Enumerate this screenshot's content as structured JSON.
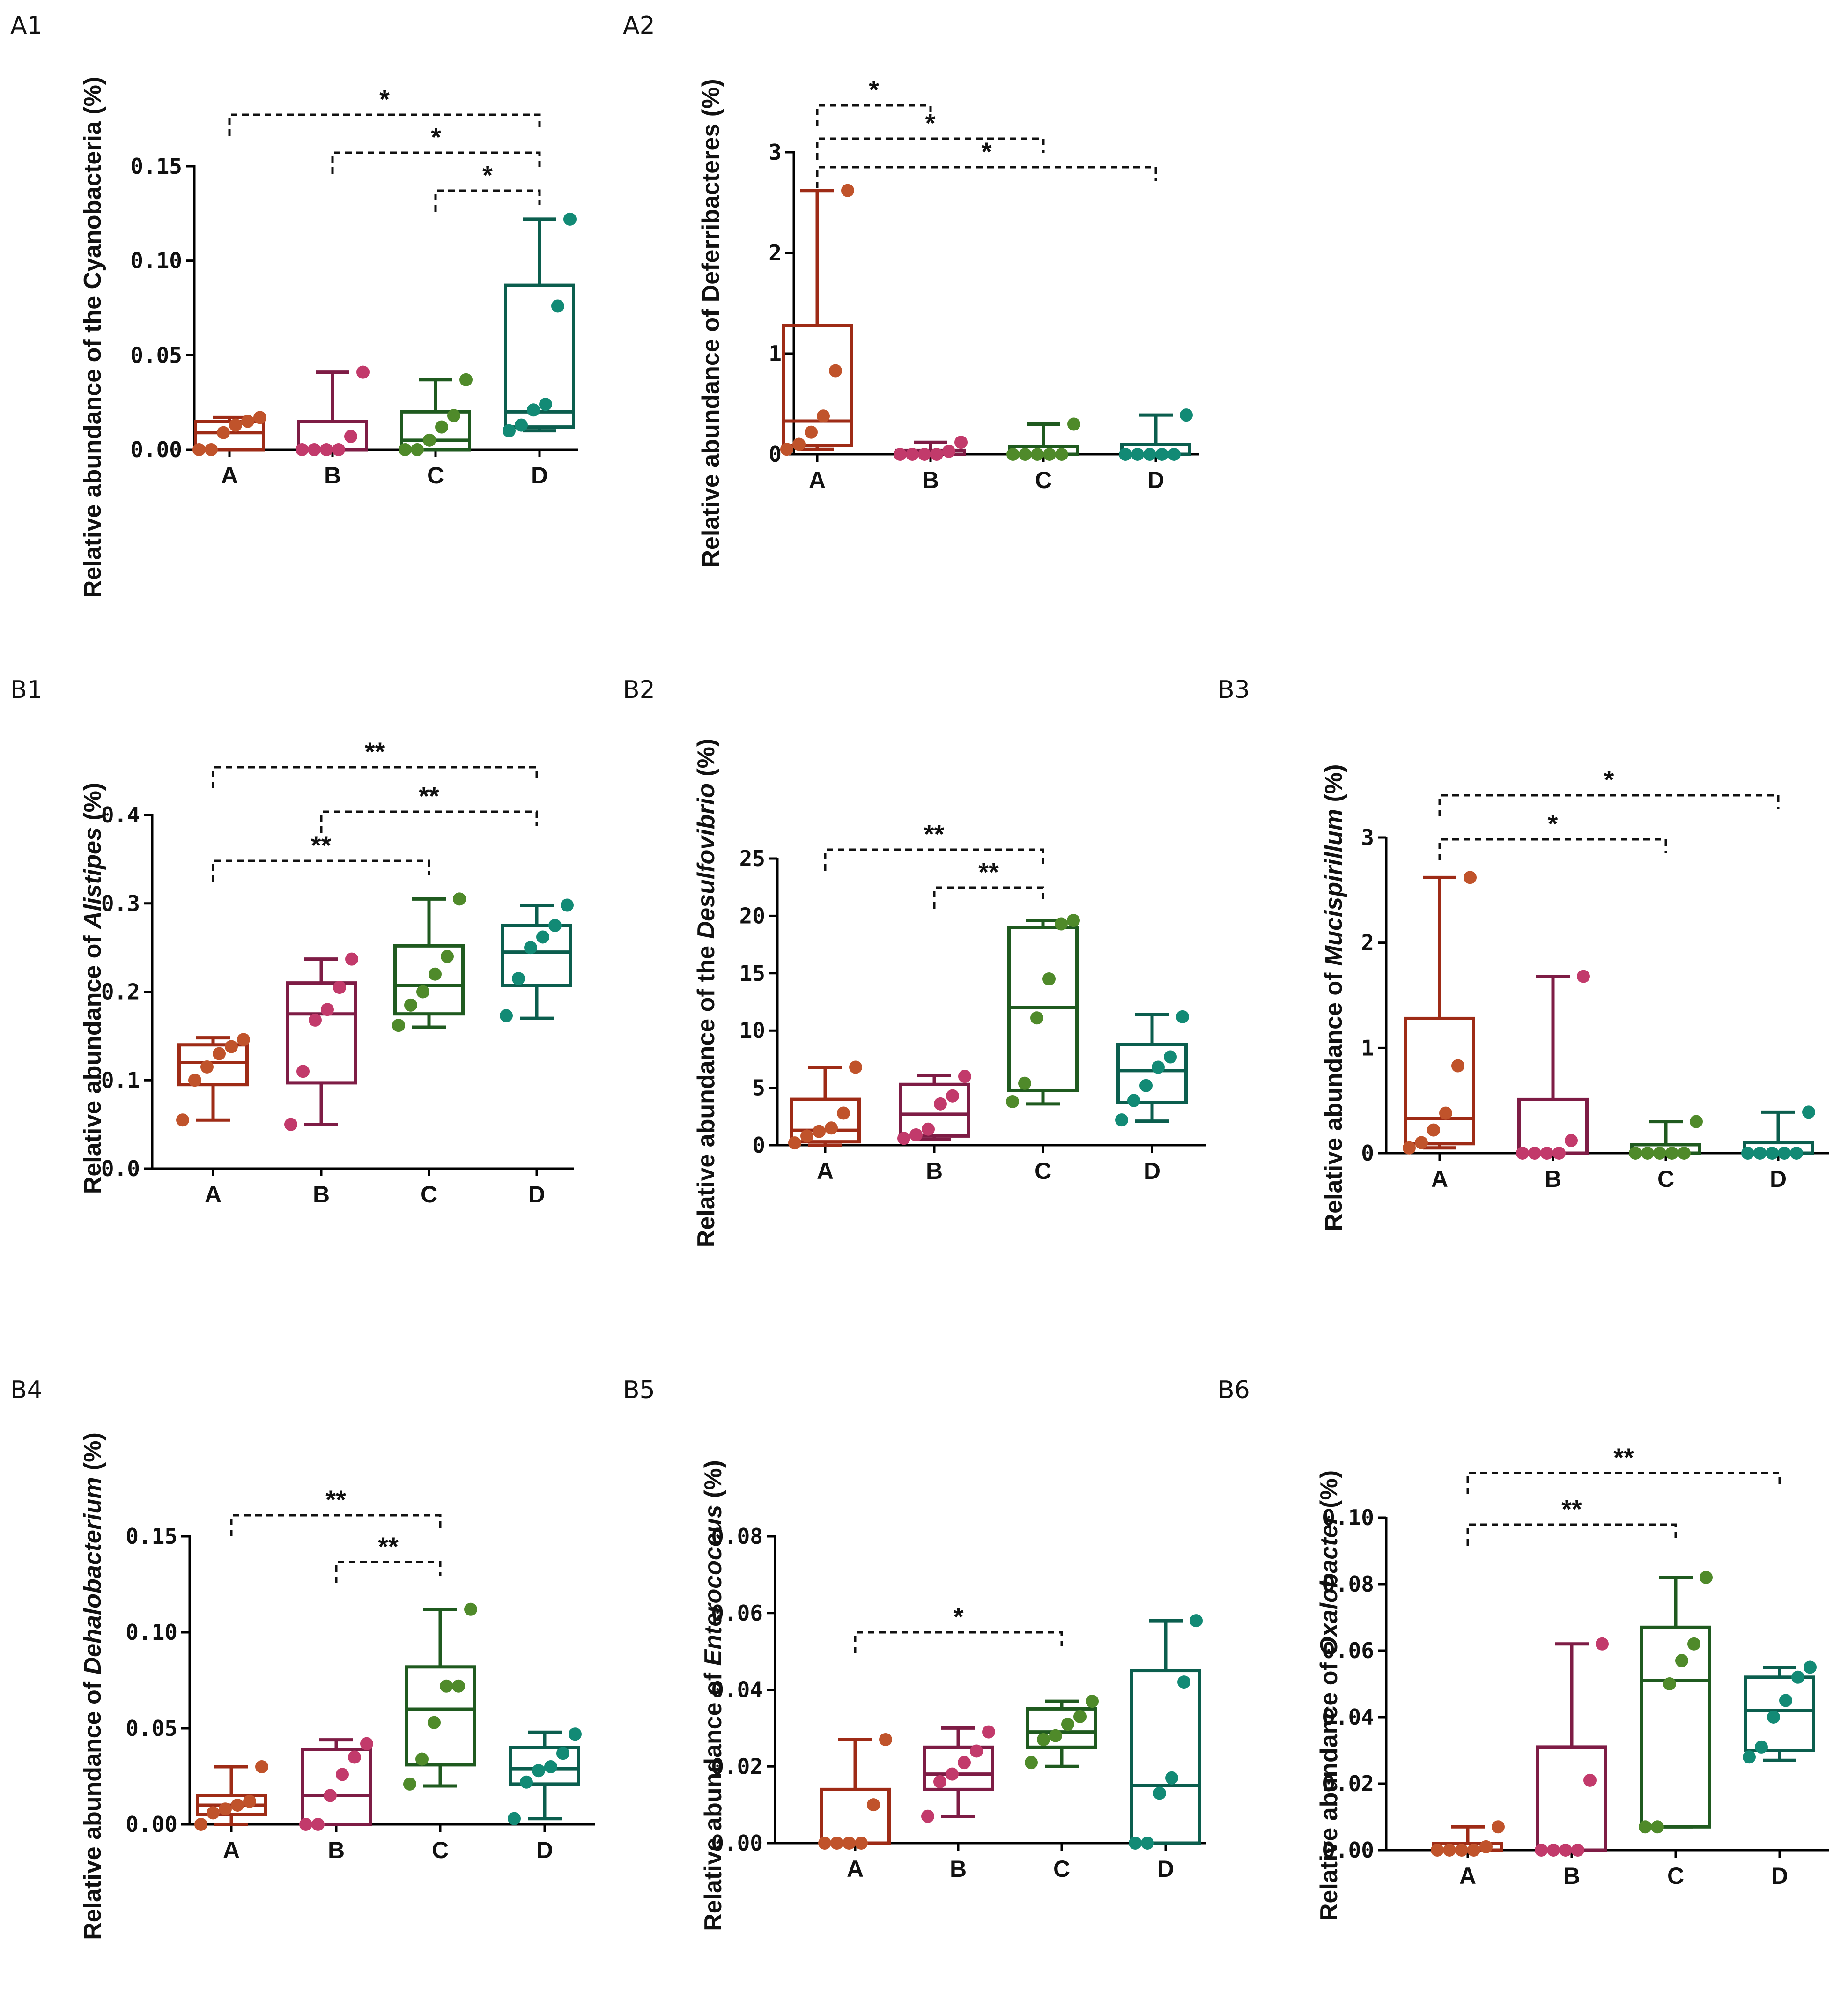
{
  "figure": {
    "colors": {
      "A": "#c0532b",
      "B": "#c23a6b",
      "C": "#4f8a2a",
      "D": "#128a75"
    },
    "box_colors": {
      "A": "#9e2b16",
      "B": "#7e1c45",
      "C": "#1f5a1f",
      "D": "#0b5e4e"
    }
  },
  "chart_data": [
    {
      "id": "A1",
      "panel_label": "A1",
      "type": "box",
      "ylabel_parts": [
        {
          "t": "Relative abundance of the Cyanobacteria (%)",
          "i": false
        }
      ],
      "ylim": [
        0,
        0.15
      ],
      "yticks": [
        0,
        0.05,
        0.1,
        0.15
      ],
      "ytick_labels": [
        "0.00",
        "0.05",
        "0.10",
        "0.15"
      ],
      "categories": [
        "A",
        "B",
        "C",
        "D"
      ],
      "boxes": [
        {
          "min": 0.0,
          "q1": 0.0,
          "median": 0.009,
          "q3": 0.015,
          "max": 0.017,
          "points": [
            0.0,
            0.0,
            0.009,
            0.013,
            0.015,
            0.017
          ]
        },
        {
          "min": 0.0,
          "q1": 0.0,
          "median": 0.0,
          "q3": 0.015,
          "max": 0.041,
          "points": [
            0.0,
            0.0,
            0.0,
            0.0,
            0.007,
            0.041
          ]
        },
        {
          "min": 0.0,
          "q1": 0.0,
          "median": 0.005,
          "q3": 0.02,
          "max": 0.037,
          "points": [
            0.0,
            0.0,
            0.005,
            0.012,
            0.018,
            0.037
          ]
        },
        {
          "min": 0.01,
          "q1": 0.012,
          "median": 0.02,
          "q3": 0.087,
          "max": 0.122,
          "points": [
            0.01,
            0.013,
            0.021,
            0.024,
            0.076,
            0.122
          ]
        }
      ],
      "sig": [
        {
          "from": 0,
          "to": 3,
          "label": "*"
        },
        {
          "from": 1,
          "to": 3,
          "label": "*"
        },
        {
          "from": 2,
          "to": 3,
          "label": "*"
        }
      ]
    },
    {
      "id": "A2",
      "panel_label": "A2",
      "type": "box",
      "ylabel_parts": [
        {
          "t": "Relative abundance of Deferribacteres (%)",
          "i": false
        }
      ],
      "ylim": [
        0,
        3
      ],
      "yticks": [
        0,
        1,
        2,
        3
      ],
      "ytick_labels": [
        "0",
        "1",
        "2",
        "3"
      ],
      "categories": [
        "A",
        "B",
        "C",
        "D"
      ],
      "boxes": [
        {
          "min": 0.05,
          "q1": 0.09,
          "median": 0.33,
          "q3": 1.28,
          "max": 2.62,
          "points": [
            0.05,
            0.1,
            0.22,
            0.38,
            0.83,
            2.62
          ]
        },
        {
          "min": 0.0,
          "q1": 0.0,
          "median": 0.0,
          "q3": 0.04,
          "max": 0.12,
          "points": [
            0.0,
            0.0,
            0.0,
            0.0,
            0.03,
            0.12
          ]
        },
        {
          "min": 0.0,
          "q1": 0.0,
          "median": 0.0,
          "q3": 0.08,
          "max": 0.3,
          "points": [
            0.0,
            0.0,
            0.0,
            0.0,
            0.0,
            0.3
          ]
        },
        {
          "min": 0.0,
          "q1": 0.0,
          "median": 0.0,
          "q3": 0.1,
          "max": 0.39,
          "points": [
            0.0,
            0.0,
            0.0,
            0.0,
            0.0,
            0.39
          ]
        }
      ],
      "sig": [
        {
          "from": 0,
          "to": 1,
          "label": "*"
        },
        {
          "from": 0,
          "to": 2,
          "label": "*"
        },
        {
          "from": 0,
          "to": 3,
          "label": "*"
        }
      ]
    },
    {
      "id": "B1",
      "panel_label": "B1",
      "type": "box",
      "ylabel_parts": [
        {
          "t": "Relative abundance of ",
          "i": false
        },
        {
          "t": "Alistipes",
          "i": true
        },
        {
          "t": " (%)",
          "i": false
        }
      ],
      "ylim": [
        0,
        0.4
      ],
      "yticks": [
        0,
        0.1,
        0.2,
        0.3,
        0.4
      ],
      "ytick_labels": [
        "0.0",
        "0.1",
        "0.2",
        "0.3",
        "0.4"
      ],
      "categories": [
        "A",
        "B",
        "C",
        "D"
      ],
      "boxes": [
        {
          "min": 0.055,
          "q1": 0.095,
          "median": 0.12,
          "q3": 0.14,
          "max": 0.148,
          "points": [
            0.055,
            0.1,
            0.115,
            0.13,
            0.138,
            0.146
          ]
        },
        {
          "min": 0.05,
          "q1": 0.097,
          "median": 0.175,
          "q3": 0.21,
          "max": 0.237,
          "points": [
            0.05,
            0.11,
            0.168,
            0.18,
            0.205,
            0.237
          ]
        },
        {
          "min": 0.16,
          "q1": 0.175,
          "median": 0.207,
          "q3": 0.252,
          "max": 0.305,
          "points": [
            0.162,
            0.185,
            0.2,
            0.22,
            0.24,
            0.305
          ]
        },
        {
          "min": 0.17,
          "q1": 0.207,
          "median": 0.245,
          "q3": 0.275,
          "max": 0.298,
          "points": [
            0.173,
            0.215,
            0.25,
            0.262,
            0.275,
            0.298
          ]
        }
      ],
      "sig": [
        {
          "from": 0,
          "to": 3,
          "label": "**"
        },
        {
          "from": 1,
          "to": 3,
          "label": "**"
        },
        {
          "from": 0,
          "to": 2,
          "label": "**"
        }
      ]
    },
    {
      "id": "B2",
      "panel_label": "B2",
      "type": "box",
      "ylabel_parts": [
        {
          "t": "Relative abundance of the ",
          "i": false
        },
        {
          "t": "Desulfovibrio",
          "i": true
        },
        {
          "t": " (%)",
          "i": false
        }
      ],
      "ylim": [
        0,
        25
      ],
      "yticks": [
        0,
        5,
        10,
        15,
        20,
        25
      ],
      "ytick_labels": [
        "0",
        "5",
        "10",
        "15",
        "20",
        "25"
      ],
      "categories": [
        "A",
        "B",
        "C",
        "D"
      ],
      "boxes": [
        {
          "min": 0.0,
          "q1": 0.3,
          "median": 1.3,
          "q3": 4.0,
          "max": 6.8,
          "points": [
            0.2,
            0.8,
            1.2,
            1.5,
            2.8,
            6.8
          ]
        },
        {
          "min": 0.5,
          "q1": 0.8,
          "median": 2.7,
          "q3": 5.3,
          "max": 6.1,
          "points": [
            0.6,
            0.9,
            1.4,
            3.6,
            4.3,
            6.0
          ]
        },
        {
          "min": 3.6,
          "q1": 4.8,
          "median": 12.0,
          "q3": 19.0,
          "max": 19.6,
          "points": [
            3.8,
            5.4,
            11.1,
            14.5,
            19.3,
            19.6
          ]
        },
        {
          "min": 2.1,
          "q1": 3.7,
          "median": 6.5,
          "q3": 8.8,
          "max": 11.4,
          "points": [
            2.2,
            3.9,
            5.2,
            6.8,
            7.7,
            11.2
          ]
        }
      ],
      "sig": [
        {
          "from": 0,
          "to": 2,
          "label": "**"
        },
        {
          "from": 1,
          "to": 2,
          "label": "**"
        }
      ]
    },
    {
      "id": "B3",
      "panel_label": "B3",
      "type": "box",
      "ylabel_parts": [
        {
          "t": "Relative abundance of ",
          "i": false
        },
        {
          "t": "Mucispirillum",
          "i": true
        },
        {
          "t": " (%)",
          "i": false
        }
      ],
      "ylim": [
        0,
        3
      ],
      "yticks": [
        0,
        1,
        2,
        3
      ],
      "ytick_labels": [
        "0",
        "1",
        "2",
        "3"
      ],
      "categories": [
        "A",
        "B",
        "C",
        "D"
      ],
      "boxes": [
        {
          "min": 0.05,
          "q1": 0.09,
          "median": 0.33,
          "q3": 1.28,
          "max": 2.62,
          "points": [
            0.05,
            0.1,
            0.22,
            0.38,
            0.83,
            2.62
          ]
        },
        {
          "min": 0.0,
          "q1": 0.0,
          "median": 0.0,
          "q3": 0.51,
          "max": 1.68,
          "points": [
            0.0,
            0.0,
            0.0,
            0.0,
            0.12,
            1.68
          ]
        },
        {
          "min": 0.0,
          "q1": 0.0,
          "median": 0.0,
          "q3": 0.08,
          "max": 0.3,
          "points": [
            0.0,
            0.0,
            0.0,
            0.0,
            0.0,
            0.3
          ]
        },
        {
          "min": 0.0,
          "q1": 0.0,
          "median": 0.0,
          "q3": 0.1,
          "max": 0.39,
          "points": [
            0.0,
            0.0,
            0.0,
            0.0,
            0.0,
            0.39
          ]
        }
      ],
      "sig": [
        {
          "from": 0,
          "to": 3,
          "label": "*"
        },
        {
          "from": 0,
          "to": 2,
          "label": "*"
        }
      ]
    },
    {
      "id": "B4",
      "panel_label": "B4",
      "type": "box",
      "ylabel_parts": [
        {
          "t": "Relative abundance of ",
          "i": false
        },
        {
          "t": "Dehalobacterium",
          "i": true
        },
        {
          "t": " (%)",
          "i": false
        }
      ],
      "ylim": [
        0,
        0.15
      ],
      "yticks": [
        0,
        0.05,
        0.1,
        0.15
      ],
      "ytick_labels": [
        "0.00",
        "0.05",
        "0.10",
        "0.15"
      ],
      "categories": [
        "A",
        "B",
        "C",
        "D"
      ],
      "boxes": [
        {
          "min": 0.0,
          "q1": 0.005,
          "median": 0.01,
          "q3": 0.015,
          "max": 0.03,
          "points": [
            0.0,
            0.006,
            0.008,
            0.01,
            0.012,
            0.03
          ]
        },
        {
          "min": 0.0,
          "q1": 0.0,
          "median": 0.015,
          "q3": 0.039,
          "max": 0.044,
          "points": [
            0.0,
            0.0,
            0.015,
            0.026,
            0.035,
            0.042
          ]
        },
        {
          "min": 0.02,
          "q1": 0.031,
          "median": 0.06,
          "q3": 0.082,
          "max": 0.112,
          "points": [
            0.021,
            0.034,
            0.053,
            0.072,
            0.072,
            0.112
          ]
        },
        {
          "min": 0.003,
          "q1": 0.021,
          "median": 0.029,
          "q3": 0.04,
          "max": 0.048,
          "points": [
            0.003,
            0.022,
            0.028,
            0.03,
            0.037,
            0.047
          ]
        }
      ],
      "sig": [
        {
          "from": 0,
          "to": 2,
          "label": "**"
        },
        {
          "from": 1,
          "to": 2,
          "label": "**"
        }
      ]
    },
    {
      "id": "B5",
      "panel_label": "B5",
      "type": "box",
      "ylabel_parts": [
        {
          "t": "Relative abundance of ",
          "i": false
        },
        {
          "t": "Enterococcus",
          "i": true
        },
        {
          "t": " (%)",
          "i": false
        }
      ],
      "ylim": [
        0,
        0.08
      ],
      "yticks": [
        0,
        0.02,
        0.04,
        0.06,
        0.08
      ],
      "ytick_labels": [
        "0.00",
        "0.02",
        "0.04",
        "0.06",
        "0.08"
      ],
      "categories": [
        "A",
        "B",
        "C",
        "D"
      ],
      "boxes": [
        {
          "min": 0.0,
          "q1": 0.0,
          "median": 0.0,
          "q3": 0.014,
          "max": 0.027,
          "points": [
            0.0,
            0.0,
            0.0,
            0.0,
            0.01,
            0.027
          ]
        },
        {
          "min": 0.007,
          "q1": 0.014,
          "median": 0.018,
          "q3": 0.025,
          "max": 0.03,
          "points": [
            0.007,
            0.016,
            0.018,
            0.021,
            0.024,
            0.029
          ]
        },
        {
          "min": 0.02,
          "q1": 0.025,
          "median": 0.029,
          "q3": 0.035,
          "max": 0.037,
          "points": [
            0.021,
            0.027,
            0.028,
            0.031,
            0.033,
            0.037
          ]
        },
        {
          "min": 0.0,
          "q1": 0.0,
          "median": 0.015,
          "q3": 0.045,
          "max": 0.058,
          "points": [
            0.0,
            0.0,
            0.013,
            0.017,
            0.042,
            0.058
          ]
        }
      ],
      "sig": [
        {
          "from": 0,
          "to": 2,
          "label": "*"
        }
      ]
    },
    {
      "id": "B6",
      "panel_label": "B6",
      "type": "box",
      "ylabel_parts": [
        {
          "t": "Relative abundance of ",
          "i": false
        },
        {
          "t": "Oxalobacter",
          "i": true
        },
        {
          "t": " (%)",
          "i": false
        }
      ],
      "ylim": [
        0,
        0.1
      ],
      "yticks": [
        0,
        0.02,
        0.04,
        0.06,
        0.08,
        0.1
      ],
      "ytick_labels": [
        "0.00",
        "0.02",
        "0.04",
        "0.06",
        "0.08",
        "0.10"
      ],
      "categories": [
        "A",
        "B",
        "C",
        "D"
      ],
      "boxes": [
        {
          "min": 0.0,
          "q1": 0.0,
          "median": 0.0,
          "q3": 0.002,
          "max": 0.007,
          "points": [
            0.0,
            0.0,
            0.0,
            0.0,
            0.001,
            0.007
          ]
        },
        {
          "min": 0.0,
          "q1": 0.0,
          "median": 0.0,
          "q3": 0.031,
          "max": 0.062,
          "points": [
            0.0,
            0.0,
            0.0,
            0.0,
            0.021,
            0.062
          ]
        },
        {
          "min": 0.007,
          "q1": 0.007,
          "median": 0.051,
          "q3": 0.067,
          "max": 0.082,
          "points": [
            0.007,
            0.007,
            0.05,
            0.057,
            0.062,
            0.082
          ]
        },
        {
          "min": 0.027,
          "q1": 0.03,
          "median": 0.042,
          "q3": 0.052,
          "max": 0.055,
          "points": [
            0.028,
            0.031,
            0.04,
            0.045,
            0.052,
            0.055
          ]
        }
      ],
      "sig": [
        {
          "from": 0,
          "to": 3,
          "label": "**"
        },
        {
          "from": 0,
          "to": 2,
          "label": "**"
        }
      ]
    }
  ]
}
